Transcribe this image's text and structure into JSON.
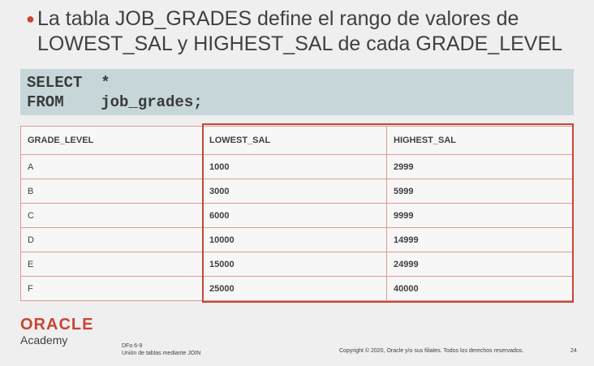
{
  "slide": {
    "bullet_line1": "La tabla JOB_GRADES define el rango de valores de",
    "bullet_line2": "LOWEST_SAL y HIGHEST_SAL de cada GRADE_LEVEL",
    "bullet_color": "#c74634"
  },
  "code": {
    "line1": "SELECT  *",
    "line2": "FROM    job_grades;",
    "background": "#c7d7d9"
  },
  "table": {
    "headers": [
      "GRADE_LEVEL",
      "LOWEST_SAL",
      "HIGHEST_SAL"
    ],
    "rows": [
      [
        "A",
        "1000",
        "2999"
      ],
      [
        "B",
        "3000",
        "5999"
      ],
      [
        "C",
        "6000",
        "9999"
      ],
      [
        "D",
        "10000",
        "14999"
      ],
      [
        "E",
        "15000",
        "24999"
      ],
      [
        "F",
        "25000",
        "40000"
      ]
    ],
    "highlight_color": "#c74634"
  },
  "footer": {
    "logo": "ORACLE",
    "academy": "Academy",
    "course_code": "DFo 6-9",
    "course_title": "Unión de tablas mediante JOIN",
    "copyright": "Copyright © 2020, Oracle y/o sus filiales. Todos los derechos reservados.",
    "page_number": "24"
  }
}
